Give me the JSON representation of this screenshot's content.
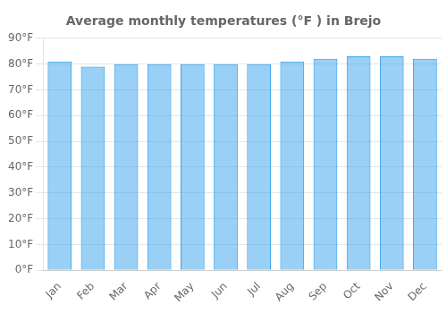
{
  "chart_data": {
    "type": "bar",
    "title": "Average monthly temperatures (°F ) in Brejo",
    "categories": [
      "Jan",
      "Feb",
      "Mar",
      "Apr",
      "May",
      "Jun",
      "Jul",
      "Aug",
      "Sep",
      "Oct",
      "Nov",
      "Dec"
    ],
    "values": [
      81,
      79,
      80,
      80,
      80,
      80,
      80,
      81,
      82,
      83,
      83,
      82
    ],
    "ylim": [
      0,
      90
    ],
    "yticks": [
      {
        "value": 0,
        "label": "0°F"
      },
      {
        "value": 10,
        "label": "10°F"
      },
      {
        "value": 20,
        "label": "20°F"
      },
      {
        "value": 30,
        "label": "30°F"
      },
      {
        "value": 40,
        "label": "40°F"
      },
      {
        "value": 50,
        "label": "50°F"
      },
      {
        "value": 60,
        "label": "60°F"
      },
      {
        "value": 70,
        "label": "70°F"
      },
      {
        "value": 80,
        "label": "80°F"
      },
      {
        "value": 90,
        "label": "90°F"
      }
    ],
    "grid": true
  }
}
